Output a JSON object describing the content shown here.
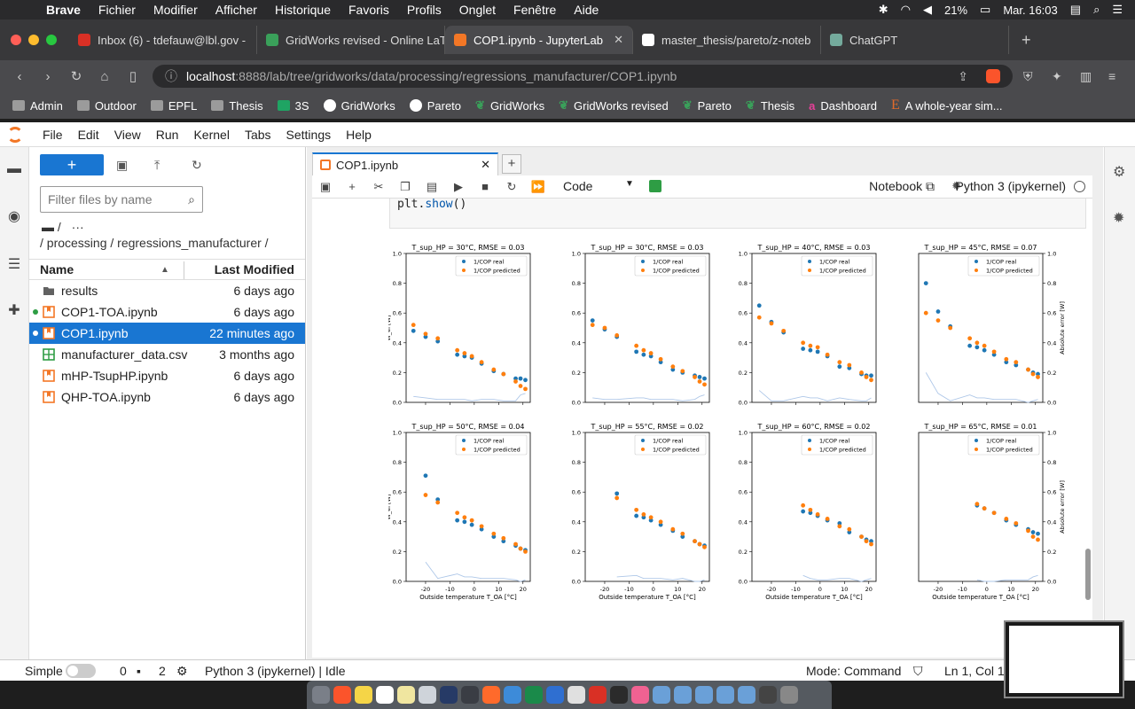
{
  "os_menubar": {
    "app": "Brave",
    "items": [
      "Fichier",
      "Modifier",
      "Afficher",
      "Historique",
      "Favoris",
      "Profils",
      "Onglet",
      "Fenêtre",
      "Aide"
    ],
    "battery": "21%",
    "clock": "Mar. 16:03"
  },
  "browser_tabs": [
    {
      "label": "Inbox (6) - tdefauw@lbl.gov - ",
      "color": "#d93025",
      "active": false
    },
    {
      "label": "GridWorks revised - Online LaT",
      "color": "#3aa05a",
      "active": false
    },
    {
      "label": "COP1.ipynb - JupyterLab",
      "color": "#f37726",
      "active": true
    },
    {
      "label": "master_thesis/pareto/z-noteb",
      "color": "#ffffff",
      "active": false
    },
    {
      "label": "ChatGPT",
      "color": "#74aa9c",
      "active": false
    }
  ],
  "address": {
    "host": "localhost",
    "path": ":8888/lab/tree/gridworks/data/processing/regressions_manufacturer/COP1.ipynb"
  },
  "bookmarks": [
    "Admin",
    "Outdoor",
    "EPFL",
    "Thesis",
    "3S",
    "GridWorks",
    "Pareto",
    "GridWorks",
    "GridWorks revised",
    "Pareto",
    "Thesis",
    "Dashboard",
    "A whole-year sim..."
  ],
  "jupyter_menu": [
    "File",
    "Edit",
    "View",
    "Run",
    "Kernel",
    "Tabs",
    "Settings",
    "Help"
  ],
  "filebrowser": {
    "new_label": "+",
    "filter_placeholder": "Filter files by name",
    "crumb_root": "/",
    "crumb_more": "···",
    "path": "/ processing / regressions_manufacturer /",
    "col_name": "Name",
    "col_modified": "Last Modified",
    "files": [
      {
        "name": "results",
        "modified": "6 days ago",
        "type": "folder",
        "running": false,
        "selected": false
      },
      {
        "name": "COP1-TOA.ipynb",
        "modified": "6 days ago",
        "type": "notebook",
        "running": true,
        "selected": false
      },
      {
        "name": "COP1.ipynb",
        "modified": "22 minutes ago",
        "type": "notebook",
        "running": true,
        "selected": true
      },
      {
        "name": "manufacturer_data.csv",
        "modified": "3 months ago",
        "type": "csv",
        "running": false,
        "selected": false
      },
      {
        "name": "mHP-TsupHP.ipynb",
        "modified": "6 days ago",
        "type": "notebook",
        "running": false,
        "selected": false
      },
      {
        "name": "QHP-TOA.ipynb",
        "modified": "6 days ago",
        "type": "notebook",
        "running": false,
        "selected": false
      }
    ]
  },
  "notebook": {
    "tab_label": "COP1.ipynb",
    "cell_type": "Code",
    "notebook_label": "Notebook",
    "kernel": "Python 3 (ipykernel)",
    "code_line": "plt.show()",
    "code_fn": "show"
  },
  "chart_data": [
    {
      "type": "scatter",
      "title": "T_sup_HP = 30°C, RMSE = 0.03",
      "x": [
        -25,
        -20,
        -15,
        -7,
        -4,
        -1,
        3,
        8,
        12,
        17,
        19,
        21
      ],
      "series": [
        {
          "name": "1/COP real",
          "color": "#1f77b4",
          "values": [
            0.48,
            0.44,
            0.41,
            0.32,
            0.31,
            0.3,
            0.26,
            0.21,
            0.19,
            0.16,
            0.16,
            0.15
          ]
        },
        {
          "name": "1/COP predicted",
          "color": "#ff7f0e",
          "values": [
            0.52,
            0.46,
            0.43,
            0.35,
            0.33,
            0.31,
            0.27,
            0.22,
            0.19,
            0.14,
            0.11,
            0.09
          ]
        }
      ],
      "error": [
        0.04,
        0.03,
        0.02,
        0.02,
        0.02,
        0.01,
        0.02,
        0.02,
        0.01,
        0.01,
        0.05,
        0.06
      ],
      "ylim": [
        0,
        1
      ],
      "xlabel": "",
      "ylabel": "W_el [W]"
    },
    {
      "type": "scatter",
      "title": "T_sup_HP = 30°C, RMSE = 0.03",
      "x": [
        -25,
        -20,
        -15,
        -7,
        -4,
        -1,
        3,
        8,
        12,
        17,
        19,
        21
      ],
      "series": [
        {
          "name": "1/COP real",
          "color": "#1f77b4",
          "values": [
            0.55,
            0.49,
            0.44,
            0.34,
            0.32,
            0.31,
            0.27,
            0.22,
            0.2,
            0.18,
            0.17,
            0.16
          ]
        },
        {
          "name": "1/COP predicted",
          "color": "#ff7f0e",
          "values": [
            0.52,
            0.5,
            0.45,
            0.38,
            0.35,
            0.33,
            0.29,
            0.24,
            0.21,
            0.17,
            0.14,
            0.12
          ]
        }
      ],
      "error": [
        0.03,
        0.02,
        0.02,
        0.03,
        0.03,
        0.02,
        0.02,
        0.02,
        0.01,
        0.02,
        0.04,
        0.05
      ],
      "ylim": [
        0,
        1
      ],
      "xlabel": "",
      "ylabel": ""
    },
    {
      "type": "scatter",
      "title": "T_sup_HP = 40°C, RMSE = 0.03",
      "x": [
        -25,
        -20,
        -15,
        -7,
        -4,
        -1,
        3,
        8,
        12,
        17,
        19,
        21
      ],
      "series": [
        {
          "name": "1/COP real",
          "color": "#1f77b4",
          "values": [
            0.65,
            0.54,
            0.47,
            0.36,
            0.35,
            0.34,
            0.31,
            0.24,
            0.23,
            0.19,
            0.18,
            0.18
          ]
        },
        {
          "name": "1/COP predicted",
          "color": "#ff7f0e",
          "values": [
            0.57,
            0.53,
            0.48,
            0.4,
            0.38,
            0.37,
            0.32,
            0.27,
            0.25,
            0.2,
            0.17,
            0.15
          ]
        }
      ],
      "error": [
        0.08,
        0.01,
        0.01,
        0.04,
        0.03,
        0.03,
        0.01,
        0.03,
        0.02,
        0.01,
        0.01,
        0.03
      ],
      "ylim": [
        0,
        1
      ],
      "xlabel": "",
      "ylabel": ""
    },
    {
      "type": "scatter",
      "title": "T_sup_HP = 45°C, RMSE = 0.07",
      "x": [
        -25,
        -20,
        -15,
        -7,
        -4,
        -1,
        3,
        8,
        12,
        17,
        19,
        21
      ],
      "series": [
        {
          "name": "1/COP real",
          "color": "#1f77b4",
          "values": [
            0.8,
            0.61,
            0.51,
            0.38,
            0.37,
            0.35,
            0.32,
            0.27,
            0.25,
            0.22,
            0.2,
            0.19
          ]
        },
        {
          "name": "1/COP predicted",
          "color": "#ff7f0e",
          "values": [
            0.6,
            0.55,
            0.5,
            0.43,
            0.4,
            0.38,
            0.34,
            0.29,
            0.27,
            0.22,
            0.19,
            0.17
          ]
        }
      ],
      "error": [
        0.2,
        0.06,
        0.01,
        0.05,
        0.03,
        0.03,
        0.02,
        0.02,
        0.02,
        0.0,
        0.01,
        0.02
      ],
      "ylim": [
        0,
        1
      ],
      "xlabel": "",
      "ylabel": "Absolute error [W]",
      "y2lim": [
        0,
        1
      ]
    },
    {
      "type": "scatter",
      "title": "T_sup_HP = 50°C, RMSE = 0.04",
      "x": [
        -20,
        -15,
        -7,
        -4,
        -1,
        3,
        8,
        12,
        17,
        19,
        21
      ],
      "series": [
        {
          "name": "1/COP real",
          "color": "#1f77b4",
          "values": [
            0.71,
            0.55,
            0.41,
            0.4,
            0.38,
            0.35,
            0.3,
            0.27,
            0.24,
            0.22,
            0.21
          ]
        },
        {
          "name": "1/COP predicted",
          "color": "#ff7f0e",
          "values": [
            0.58,
            0.53,
            0.46,
            0.43,
            0.41,
            0.37,
            0.32,
            0.29,
            0.25,
            0.22,
            0.2
          ]
        }
      ],
      "error": [
        0.13,
        0.02,
        0.05,
        0.03,
        0.03,
        0.02,
        0.02,
        0.02,
        0.01,
        0.0,
        0.01
      ],
      "ylim": [
        0,
        1
      ],
      "xlabel": "Outside temperature T_OA [°C]",
      "ylabel": "W_el [W]"
    },
    {
      "type": "scatter",
      "title": "T_sup_HP = 55°C, RMSE = 0.02",
      "x": [
        -15,
        -7,
        -4,
        -1,
        3,
        8,
        12,
        17,
        19,
        21
      ],
      "series": [
        {
          "name": "1/COP real",
          "color": "#1f77b4",
          "values": [
            0.59,
            0.44,
            0.43,
            0.41,
            0.38,
            0.34,
            0.3,
            0.27,
            0.25,
            0.24
          ]
        },
        {
          "name": "1/COP predicted",
          "color": "#ff7f0e",
          "values": [
            0.56,
            0.48,
            0.45,
            0.43,
            0.4,
            0.35,
            0.32,
            0.27,
            0.25,
            0.23
          ]
        }
      ],
      "error": [
        0.03,
        0.04,
        0.02,
        0.02,
        0.02,
        0.01,
        0.02,
        0.0,
        0.0,
        0.01
      ],
      "ylim": [
        0,
        1
      ],
      "xlabel": "Outside temperature T_OA [°C]",
      "ylabel": ""
    },
    {
      "type": "scatter",
      "title": "T_sup_HP = 60°C, RMSE = 0.02",
      "x": [
        -7,
        -4,
        -1,
        3,
        8,
        12,
        17,
        19,
        21
      ],
      "series": [
        {
          "name": "1/COP real",
          "color": "#1f77b4",
          "values": [
            0.47,
            0.46,
            0.44,
            0.41,
            0.39,
            0.33,
            0.3,
            0.28,
            0.27
          ]
        },
        {
          "name": "1/COP predicted",
          "color": "#ff7f0e",
          "values": [
            0.51,
            0.48,
            0.45,
            0.42,
            0.37,
            0.35,
            0.3,
            0.27,
            0.25
          ]
        }
      ],
      "error": [
        0.04,
        0.02,
        0.01,
        0.01,
        0.02,
        0.02,
        0.0,
        0.01,
        0.02
      ],
      "ylim": [
        0,
        1
      ],
      "xlabel": "Outside temperature T_OA [°C]",
      "ylabel": ""
    },
    {
      "type": "scatter",
      "title": "T_sup_HP = 65°C, RMSE = 0.01",
      "x": [
        -4,
        -1,
        3,
        8,
        12,
        17,
        19,
        21
      ],
      "series": [
        {
          "name": "1/COP real",
          "color": "#1f77b4",
          "values": [
            0.51,
            0.49,
            0.46,
            0.41,
            0.38,
            0.35,
            0.33,
            0.32
          ]
        },
        {
          "name": "1/COP predicted",
          "color": "#ff7f0e",
          "values": [
            0.52,
            0.49,
            0.46,
            0.42,
            0.39,
            0.34,
            0.3,
            0.28
          ]
        }
      ],
      "error": [
        0.01,
        0.0,
        0.0,
        0.01,
        0.01,
        0.01,
        0.03,
        0.04
      ],
      "ylim": [
        0,
        1
      ],
      "xlabel": "Outside temperature T_OA [°C]",
      "ylabel": "Absolute error [W]",
      "y2lim": [
        0,
        1
      ]
    }
  ],
  "chart_common": {
    "xlim": [
      -28,
      23
    ],
    "xticks": [
      -20,
      -10,
      0,
      10,
      20
    ],
    "yticks": [
      0.0,
      0.2,
      0.4,
      0.6,
      0.8,
      1.0
    ],
    "error_color": "#aec7e8"
  },
  "status": {
    "mode_simple": "Simple",
    "terminals": "0",
    "kernels": "2",
    "kernel_status": "Python 3 (ipykernel) | Idle",
    "mode": "Mode: Command",
    "position": "Ln 1, Col 1"
  }
}
